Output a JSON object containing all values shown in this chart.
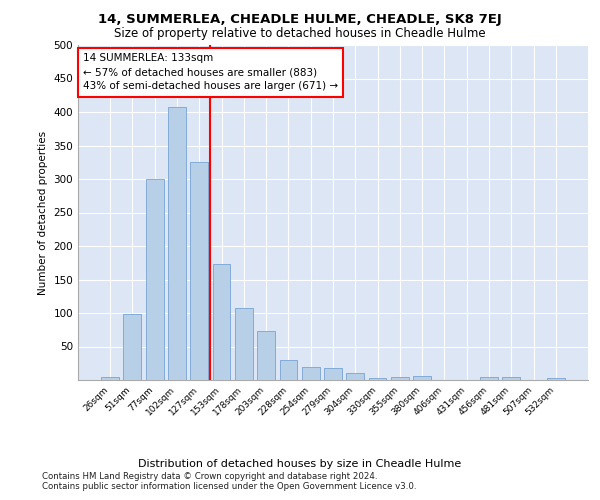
{
  "title1": "14, SUMMERLEA, CHEADLE HULME, CHEADLE, SK8 7EJ",
  "title2": "Size of property relative to detached houses in Cheadle Hulme",
  "xlabel": "Distribution of detached houses by size in Cheadle Hulme",
  "ylabel": "Number of detached properties",
  "categories": [
    "26sqm",
    "51sqm",
    "77sqm",
    "102sqm",
    "127sqm",
    "153sqm",
    "178sqm",
    "203sqm",
    "228sqm",
    "254sqm",
    "279sqm",
    "304sqm",
    "330sqm",
    "355sqm",
    "380sqm",
    "406sqm",
    "431sqm",
    "456sqm",
    "481sqm",
    "507sqm",
    "532sqm"
  ],
  "values": [
    5,
    98,
    300,
    408,
    326,
    173,
    108,
    73,
    30,
    20,
    18,
    10,
    3,
    5,
    6,
    0,
    0,
    5,
    5,
    0,
    3
  ],
  "bar_color": "#b8cfe8",
  "bar_edge_color": "#6699cc",
  "vline_color": "red",
  "annotation_text": "14 SUMMERLEA: 133sqm\n← 57% of detached houses are smaller (883)\n43% of semi-detached houses are larger (671) →",
  "annotation_box_color": "white",
  "annotation_box_edge": "red",
  "ylim": [
    0,
    500
  ],
  "yticks": [
    0,
    50,
    100,
    150,
    200,
    250,
    300,
    350,
    400,
    450,
    500
  ],
  "background_color": "#dce6f5",
  "footer_line1": "Contains HM Land Registry data © Crown copyright and database right 2024.",
  "footer_line2": "Contains public sector information licensed under the Open Government Licence v3.0."
}
